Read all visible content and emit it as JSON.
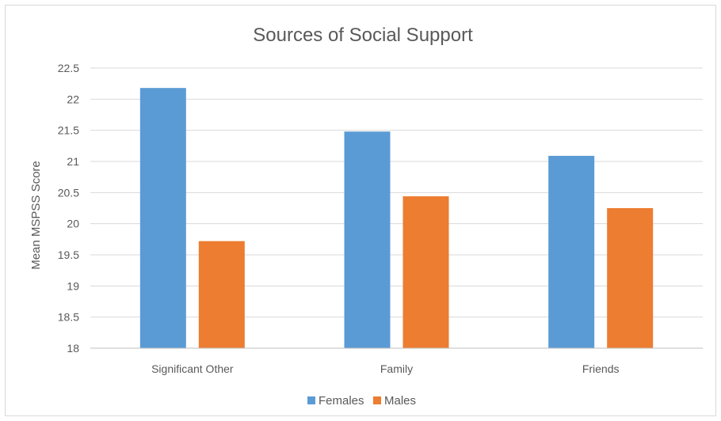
{
  "chart_data": {
    "type": "bar",
    "title": "Sources of Social Support",
    "xlabel": "",
    "ylabel": "Mean MSPSS Score",
    "categories": [
      "Significant Other",
      "Family",
      "Friends"
    ],
    "series": [
      {
        "name": "Females",
        "values": [
          22.18,
          21.48,
          21.09
        ],
        "color": "#5b9bd5"
      },
      {
        "name": "Males",
        "values": [
          19.72,
          20.44,
          20.25
        ],
        "color": "#ed7d31"
      }
    ],
    "ylim": [
      18,
      22.5
    ],
    "yticks": [
      "18",
      "18.5",
      "19",
      "19.5",
      "20",
      "20.5",
      "21",
      "21.5",
      "22",
      "22.5"
    ],
    "grid": true,
    "legend_position": "bottom"
  }
}
